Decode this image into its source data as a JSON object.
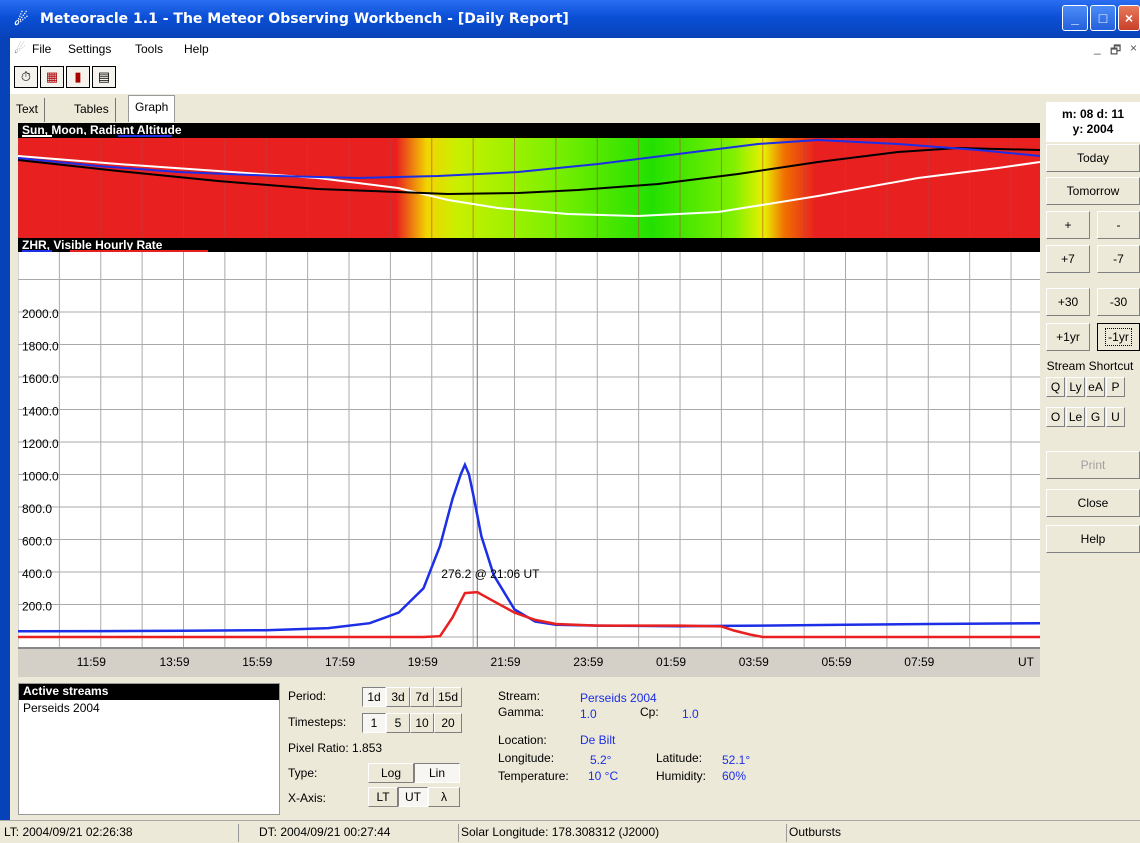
{
  "window": {
    "title": "Meteoracle 1.1 - The Meteor Observing Workbench - [Daily Report]",
    "controls": [
      "_",
      "□",
      "×"
    ]
  },
  "menu": {
    "items": [
      "File",
      "Settings",
      "Tools",
      "Help"
    ],
    "mdi_controls": [
      "_",
      "🗗",
      "×"
    ]
  },
  "toolbar": {
    "buttons": [
      "clock-icon",
      "calendar-icon",
      "bar-chart-icon",
      "calculator-icon"
    ]
  },
  "tabs": [
    "Text",
    "Tables",
    "Graph"
  ],
  "active_tab": "Graph",
  "radiant_panel": {
    "title": "Sun, Moon, Radiant Altitude",
    "series_colors": {
      "sun": "#ffffff",
      "moon": "#000000",
      "radiant": "#1c2ee6"
    }
  },
  "zhr_panel": {
    "title": "ZHR, Visible Hourly Rate",
    "series_colors": {
      "zhr": "#1c2ee6",
      "visible": "#e82020"
    },
    "annotation": "276.2 @ 21:06 UT"
  },
  "chart_data": {
    "type": "line",
    "title": "ZHR, Visible Hourly Rate",
    "y_ticks": [
      "200.0",
      "400.0",
      "600.0",
      "800.0",
      "1000.0",
      "1200.0",
      "1400.0",
      "1600.0",
      "1800.0",
      "2000.0"
    ],
    "x_ticks": [
      "11:59",
      "13:59",
      "15:59",
      "17:59",
      "19:59",
      "21:59",
      "23:59",
      "01:59",
      "03:59",
      "05:59",
      "07:59",
      "UT"
    ],
    "ylim": [
      0,
      2400
    ],
    "xlim_hours": [
      10.0,
      34.7
    ],
    "series": [
      {
        "name": "ZHR",
        "color": "#1c2ee6",
        "x": [
          10.0,
          12.0,
          14.0,
          16.0,
          17.5,
          18.5,
          19.2,
          19.8,
          20.2,
          20.5,
          20.7,
          20.8,
          20.9,
          21.0,
          21.2,
          21.5,
          22.0,
          22.5,
          23.0,
          24.0,
          25.0,
          26.0,
          27.0,
          28.0,
          30.0,
          32.0,
          34.7
        ],
        "y": [
          35,
          36,
          38,
          42,
          55,
          85,
          150,
          300,
          560,
          850,
          1000,
          1060,
          1000,
          880,
          620,
          380,
          170,
          95,
          75,
          70,
          68,
          66,
          68,
          70,
          75,
          80,
          85
        ]
      },
      {
        "name": "Visible",
        "color": "#e82020",
        "x": [
          10.0,
          19.8,
          20.2,
          20.5,
          20.8,
          21.1,
          21.5,
          22.0,
          22.5,
          23.0,
          24.0,
          25.0,
          26.0,
          27.0,
          27.3,
          27.7,
          28.0,
          28.5,
          34.7
        ],
        "y": [
          0,
          0,
          5,
          120,
          270,
          276,
          220,
          150,
          105,
          80,
          70,
          70,
          70,
          65,
          40,
          15,
          0,
          0,
          0
        ]
      }
    ],
    "cursor_x_hours": 21.1
  },
  "right_panel": {
    "date_line1": "m: 08 d: 11",
    "date_line2": "y: 2004",
    "today": "Today",
    "tomorrow": "Tomorrow",
    "plus": "+",
    "minus": "-",
    "plus7": "+7",
    "minus7": "-7",
    "plus30": "+30",
    "minus30": "-30",
    "plus1yr": "+1yr",
    "minus1yr": "-1yr",
    "shortcuts_label": "Stream Shortcut",
    "shortcuts_row1": [
      "Q",
      "Ly",
      "eA",
      "P"
    ],
    "shortcuts_row2": [
      "O",
      "Le",
      "G",
      "U"
    ],
    "print": "Print",
    "close": "Close",
    "help": "Help"
  },
  "active_streams": {
    "header": "Active streams",
    "items": [
      "Perseids 2004"
    ]
  },
  "controls": {
    "period_label": "Period:",
    "period_options": [
      "1d",
      "3d",
      "7d",
      "15d"
    ],
    "period_selected": "1d",
    "timesteps_label": "Timesteps:",
    "timesteps_options": [
      "1",
      "5",
      "10",
      "20"
    ],
    "timesteps_selected": "1",
    "pixel_ratio": "Pixel Ratio: 1.853",
    "type_label": "Type:",
    "type_options": [
      "Log",
      "Lin"
    ],
    "type_selected": "Lin",
    "xaxis_label": "X-Axis:",
    "xaxis_options": [
      "LT",
      "UT",
      "λ"
    ],
    "xaxis_selected": "UT"
  },
  "info": {
    "stream_label": "Stream:",
    "stream_value": "Perseids 2004",
    "gamma_label": "Gamma:",
    "gamma_value": "1.0",
    "cp_label": "Cp:",
    "cp_value": "1.0",
    "location_label": "Location:",
    "location_value": "De Bilt",
    "longitude_label": "Longitude:",
    "longitude_value": "5.2°",
    "latitude_label": "Latitude:",
    "latitude_value": "52.1°",
    "temperature_label": "Temperature:",
    "temperature_value": "10 °C",
    "humidity_label": "Humidity:",
    "humidity_value": "60%"
  },
  "status": {
    "lt": "LT: 2004/09/21 02:26:38",
    "dt": "DT: 2004/09/21 00:27:44",
    "solar": "Solar Longitude: 178.308312 (J2000)",
    "mode": "Outbursts"
  }
}
